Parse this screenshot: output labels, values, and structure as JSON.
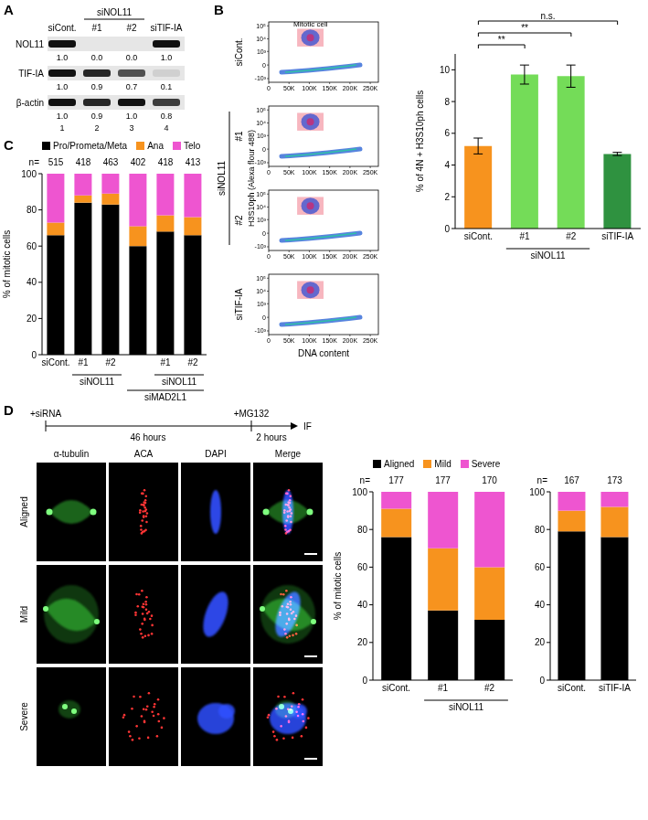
{
  "panel_labels": [
    "A",
    "B",
    "C",
    "D"
  ],
  "blot": {
    "lanes": [
      "siCont.",
      "#1",
      "#2",
      "siTIF-IA"
    ],
    "groups": [
      {
        "label": "siNOL11",
        "from": 1,
        "to": 2
      }
    ],
    "rows": [
      {
        "name": "NOL11",
        "values": [
          1.0,
          0.0,
          0.0,
          1.0
        ],
        "value_labels": [
          "1.0",
          "0.0",
          "0.0",
          "1.0"
        ]
      },
      {
        "name": "TIF-IA",
        "values": [
          1.0,
          0.9,
          0.7,
          0.1
        ],
        "value_labels": [
          "1.0",
          "0.9",
          "0.7",
          "0.1"
        ]
      },
      {
        "name": "β-actin",
        "values": [
          1.0,
          0.9,
          1.0,
          0.8
        ],
        "value_labels": [
          "1.0",
          "0.9",
          "1.0",
          "0.8"
        ]
      }
    ],
    "lane_numbers": [
      1,
      2,
      3,
      4
    ]
  },
  "flow": {
    "panels": [
      "siCont.",
      "#1",
      "#2",
      "siTIF-IA"
    ],
    "groups": [
      {
        "label": "siNOL11",
        "from": 1,
        "to": 2
      }
    ],
    "gate_label": "Mitotic cell",
    "ylabel": "H3S10ph (Alexa flour 488)",
    "xlabel": "DNA content",
    "xlim": [
      0,
      270000
    ],
    "xticks": [
      0,
      {
        "value": 50000,
        "label": "50K"
      },
      {
        "value": 100000,
        "label": "100K"
      },
      {
        "value": 150000,
        "label": "150K"
      },
      {
        "value": 200000,
        "label": "200K"
      },
      {
        "value": 250000,
        "label": "250K"
      }
    ],
    "ylim": [
      -2000,
      200000
    ],
    "yticks": [
      {
        "value": -1000,
        "label": "-10³"
      },
      0,
      {
        "value": 1000,
        "label": "10³"
      },
      {
        "value": 10000,
        "label": "10⁴"
      },
      {
        "value": 100000,
        "label": "10⁵"
      }
    ],
    "gate": {
      "x": [
        70000,
        135000
      ],
      "y": [
        2500,
        60000
      ]
    }
  },
  "timeline": {
    "events": [
      "+siRNA",
      "+MG132",
      "IF"
    ],
    "durations": [
      "46 hours",
      "2 hours"
    ]
  },
  "micrographs": {
    "columns": [
      "α-tubulin",
      "ACA",
      "DAPI",
      "Merge"
    ],
    "rows": [
      "Aligned",
      "Mild",
      "Severe"
    ]
  },
  "chart_data": [
    {
      "type": "bar",
      "ylabel": "% of 4N + H3S10ph cells",
      "categories": [
        "siCont.",
        "#1",
        "#2",
        "siTIF-IA"
      ],
      "groups": [
        {
          "label": "siNOL11",
          "from": 1,
          "to": 2,
          "level": 1
        }
      ],
      "values": [
        5.2,
        9.7,
        9.6,
        4.7
      ],
      "errors": [
        0.5,
        0.6,
        0.7,
        0.1
      ],
      "colors": [
        "#f7931e",
        "#74dc58",
        "#74dc58",
        "#2f9240"
      ],
      "ylim": [
        0,
        11
      ],
      "yticks": [
        0,
        2,
        4,
        6,
        8,
        10
      ],
      "annotations": [
        {
          "from": 0,
          "to": 1,
          "label": "**"
        },
        {
          "from": 0,
          "to": 2,
          "label": "**"
        },
        {
          "from": 0,
          "to": 3,
          "label": "n.s."
        }
      ]
    },
    {
      "type": "bar",
      "stacked": true,
      "legend": "top",
      "ylabel": "% of mitotic cells",
      "categories": [
        "siCont.",
        "#1",
        "#2",
        null,
        "#1",
        "#2"
      ],
      "groups": [
        {
          "label": "siNOL11",
          "from": 1,
          "to": 2,
          "level": 1
        },
        {
          "label": "siNOL11",
          "from": 4,
          "to": 5,
          "level": 1
        },
        {
          "label": "siMAD2L1",
          "from": 3,
          "to": 5,
          "level": 2
        }
      ],
      "n_label": "n=",
      "n": [
        515,
        418,
        463,
        402,
        418,
        413
      ],
      "series": [
        {
          "name": "Pro/Prometa/Meta",
          "color": "#000000",
          "values": [
            66,
            84,
            83,
            60,
            68,
            66
          ]
        },
        {
          "name": "Ana",
          "color": "#f7931e",
          "values": [
            7,
            4,
            6,
            11,
            9,
            10
          ]
        },
        {
          "name": "Telo",
          "color": "#ee55d0",
          "values": [
            27,
            12,
            11,
            29,
            23,
            24
          ]
        }
      ],
      "ylim": [
        0,
        100
      ],
      "yticks": [
        0,
        20,
        40,
        60,
        80,
        100
      ]
    },
    {
      "type": "bar",
      "stacked": true,
      "legend": "top",
      "ylabel": "% of mitotic cells",
      "categories": [
        "siCont.",
        "#1",
        "#2"
      ],
      "groups": [
        {
          "label": "siNOL11",
          "from": 1,
          "to": 2,
          "level": 1
        }
      ],
      "n_label": "n=",
      "n": [
        177,
        177,
        170
      ],
      "series": [
        {
          "name": "Aligned",
          "color": "#000000",
          "values": [
            76,
            37,
            32
          ]
        },
        {
          "name": "Mild",
          "color": "#f7931e",
          "values": [
            15,
            33,
            28
          ]
        },
        {
          "name": "Severe",
          "color": "#ee55d0",
          "values": [
            9,
            30,
            40
          ]
        }
      ],
      "ylim": [
        0,
        100
      ],
      "yticks": [
        0,
        20,
        40,
        60,
        80,
        100
      ]
    },
    {
      "type": "bar",
      "stacked": true,
      "categories": [
        "siCont.",
        "siTIF-IA"
      ],
      "n_label": "n=",
      "n": [
        167,
        173
      ],
      "series": [
        {
          "name": "Aligned",
          "color": "#000000",
          "values": [
            79,
            76
          ]
        },
        {
          "name": "Mild",
          "color": "#f7931e",
          "values": [
            11,
            16
          ]
        },
        {
          "name": "Severe",
          "color": "#ee55d0",
          "values": [
            10,
            8
          ]
        }
      ],
      "ylim": [
        0,
        100
      ],
      "yticks": [
        0,
        20,
        40,
        60,
        80,
        100
      ]
    }
  ]
}
